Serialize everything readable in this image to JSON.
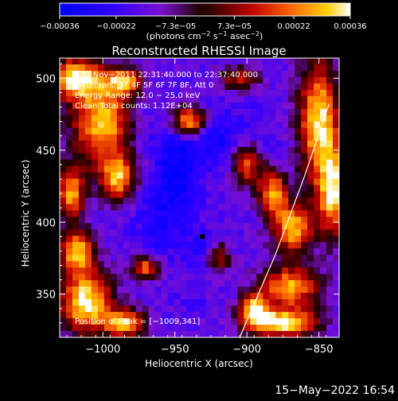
{
  "chart_data": {
    "type": "heatmap",
    "title": "Reconstructed RHESSI Image",
    "xlabel": "Heliocentric X (arcsec)",
    "ylabel": "Heliocentric Y (arcsec)",
    "xlim": [
      -1030,
      -836
    ],
    "ylim": [
      320,
      514
    ],
    "x_ticks": [
      -1000,
      -950,
      -900,
      -850
    ],
    "x_tick_labels": [
      "−1000",
      "−950",
      "−900",
      "−850"
    ],
    "y_ticks": [
      350,
      400,
      450,
      500
    ],
    "y_tick_labels": [
      "350",
      "400",
      "450",
      "500"
    ],
    "colorbar": {
      "range": [
        -0.00036,
        0.00036
      ],
      "ticks": [
        -0.00036,
        -0.00022,
        -7.3e-05,
        7.3e-05,
        0.00022,
        0.00036
      ],
      "tick_labels": [
        "−0.00036",
        "−0.00022",
        "−7.3e−05",
        "7.3e−05",
        "0.00022",
        "0.00036"
      ],
      "units_prefix": "(photons cm",
      "units_exp1": "−2",
      "units_mid": " s",
      "units_exp2": "−1",
      "units_mid2": " asec",
      "units_exp3": "−2",
      "units_suffix": ")"
    },
    "info_lines": [
      "1−Nov−2011 22:31:40.000 to 22:37:40.000",
      "Detectors: 3F 4F 5F 6F 7F 8F, Att 0",
      "Energy Range: 12.0 − 25.0 keV",
      "Clean     Total counts: 1.12E+04"
    ],
    "peak_label": "Position of Peak = [−1009,341]",
    "peak": {
      "x": -1009,
      "y": 341
    },
    "limb_arc": [
      [
        -905,
        320
      ],
      [
        -880,
        378
      ],
      [
        -860,
        432
      ],
      [
        -843,
        482
      ]
    ],
    "bright_regions": [
      {
        "x": -1020,
        "y": 500,
        "rx": 18,
        "ry": 14,
        "v": 0.00033
      },
      {
        "x": -1000,
        "y": 470,
        "rx": 22,
        "ry": 30,
        "v": 0.0003
      },
      {
        "x": -990,
        "y": 430,
        "rx": 12,
        "ry": 16,
        "v": 0.00025
      },
      {
        "x": -985,
        "y": 498,
        "rx": 12,
        "ry": 8,
        "v": 0.00024
      },
      {
        "x": -1022,
        "y": 420,
        "rx": 10,
        "ry": 18,
        "v": 0.00026
      },
      {
        "x": -1018,
        "y": 380,
        "rx": 12,
        "ry": 14,
        "v": 0.00028
      },
      {
        "x": -1012,
        "y": 345,
        "rx": 18,
        "ry": 22,
        "v": 0.00036
      },
      {
        "x": -985,
        "y": 330,
        "rx": 14,
        "ry": 10,
        "v": 0.00028
      },
      {
        "x": -970,
        "y": 368,
        "rx": 10,
        "ry": 8,
        "v": 0.00022
      },
      {
        "x": -940,
        "y": 470,
        "rx": 12,
        "ry": 10,
        "v": 0.00032
      },
      {
        "x": -900,
        "y": 440,
        "rx": 10,
        "ry": 14,
        "v": 0.00018
      },
      {
        "x": -882,
        "y": 420,
        "rx": 10,
        "ry": 16,
        "v": 0.00026
      },
      {
        "x": -868,
        "y": 395,
        "rx": 14,
        "ry": 18,
        "v": 0.00028
      },
      {
        "x": -850,
        "y": 470,
        "rx": 14,
        "ry": 44,
        "v": 0.00033
      },
      {
        "x": -840,
        "y": 420,
        "rx": 10,
        "ry": 30,
        "v": 0.0003
      },
      {
        "x": -870,
        "y": 355,
        "rx": 20,
        "ry": 14,
        "v": 0.00028
      },
      {
        "x": -875,
        "y": 330,
        "rx": 24,
        "ry": 10,
        "v": 0.00036
      },
      {
        "x": -895,
        "y": 340,
        "rx": 10,
        "ry": 12,
        "v": 0.00026
      },
      {
        "x": -920,
        "y": 375,
        "rx": 8,
        "ry": 10,
        "v": 0.00014
      },
      {
        "x": -905,
        "y": 500,
        "rx": 14,
        "ry": 8,
        "v": 0.00012
      }
    ],
    "dark_regions": [
      {
        "x": -948,
        "y": 440,
        "rx": 16,
        "ry": 30,
        "v": -0.00036
      },
      {
        "x": -960,
        "y": 400,
        "rx": 18,
        "ry": 24,
        "v": -0.00028
      },
      {
        "x": -930,
        "y": 380,
        "rx": 12,
        "ry": 14,
        "v": -0.00026
      },
      {
        "x": -920,
        "y": 460,
        "rx": 14,
        "ry": 18,
        "v": -0.0003
      },
      {
        "x": -975,
        "y": 470,
        "rx": 12,
        "ry": 18,
        "v": -0.00024
      },
      {
        "x": -895,
        "y": 470,
        "rx": 10,
        "ry": 20,
        "v": -0.0002
      },
      {
        "x": -855,
        "y": 505,
        "rx": 12,
        "ry": 8,
        "v": -0.00018
      },
      {
        "x": -940,
        "y": 345,
        "rx": 10,
        "ry": 10,
        "v": -0.0002
      },
      {
        "x": -880,
        "y": 450,
        "rx": 8,
        "ry": 10,
        "v": -0.00022
      }
    ]
  },
  "footer": {
    "timestamp": "15−May−2022 16:54"
  }
}
